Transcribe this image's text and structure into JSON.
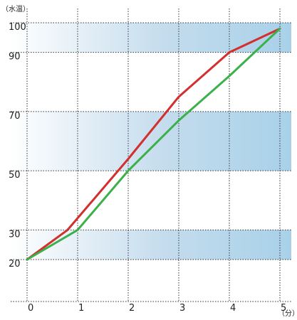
{
  "chart_data": {
    "type": "line",
    "title": "",
    "xlabel": "（分）",
    "ylabel": "（水温）",
    "x_ticks": [
      0,
      1,
      2,
      3,
      4,
      5
    ],
    "y_ticks": [
      20,
      30,
      50,
      70,
      90,
      100
    ],
    "xlim": [
      0,
      5.25
    ],
    "ylim": [
      10,
      102
    ],
    "grid": true,
    "bands": [
      [
        90,
        100
      ],
      [
        50,
        70
      ],
      [
        20,
        30
      ]
    ],
    "series": [
      {
        "color": "#d32f2f",
        "x": [
          0,
          0.8,
          2,
          3,
          4,
          5
        ],
        "y": [
          20,
          30,
          54,
          75,
          90,
          98
        ]
      },
      {
        "color": "#3cb04a",
        "x": [
          0,
          1,
          2,
          3,
          4,
          5
        ],
        "y": [
          20,
          30,
          50,
          67,
          82,
          98
        ]
      }
    ]
  }
}
